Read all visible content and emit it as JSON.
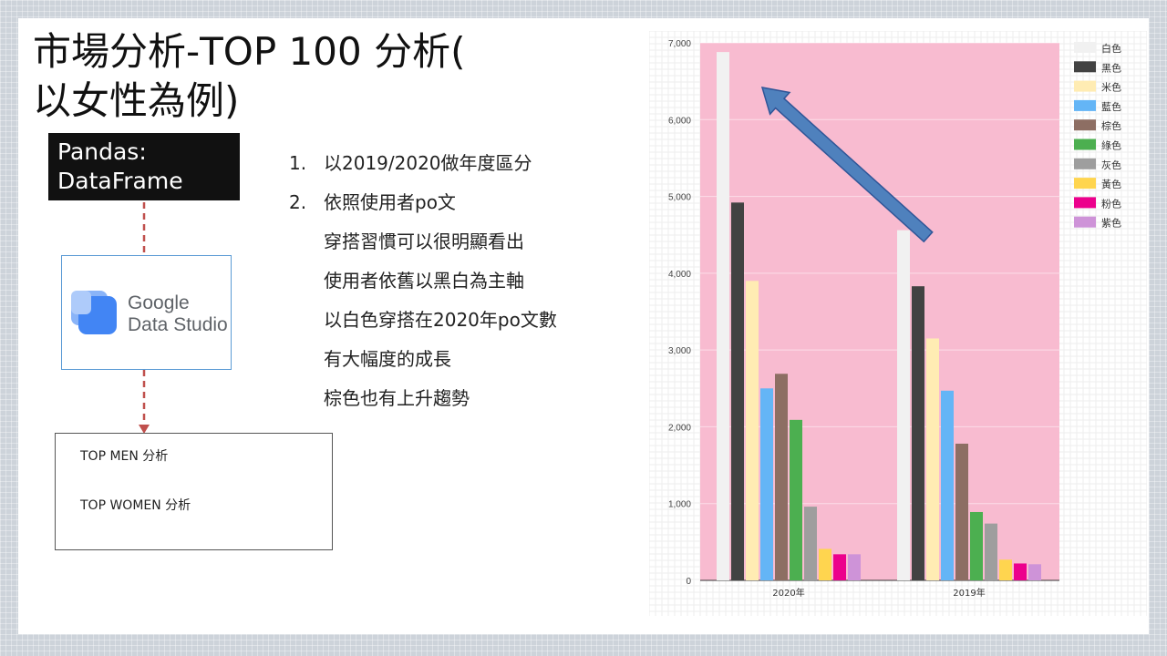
{
  "slide": {
    "title_line1": "市場分析-TOP 100 分析(",
    "title_line2": "以女性為例)",
    "pandas_label_line1": "Pandas:",
    "pandas_label_line2": "DataFrame",
    "gds_label_line1": "Google",
    "gds_label_line2": "Data Studio",
    "top_men": "TOP MEN 分析",
    "top_women": "TOP WOMEN 分析",
    "bullets": [
      {
        "num": "1.",
        "text": "以2019/2020做年度區分"
      },
      {
        "num": "2.",
        "text": "依照使用者po文"
      },
      {
        "num": "",
        "text": "穿搭習慣可以很明顯看出"
      },
      {
        "num": "",
        "text": "使用者依舊以黑白為主軸"
      },
      {
        "num": "",
        "text": "以白色穿搭在2020年po文數"
      },
      {
        "num": "",
        "text": "有大幅度的成長"
      },
      {
        "num": "",
        "text": "棕色也有上升趨勢"
      }
    ]
  },
  "colors": {
    "plot_bg": "#f8bbd0",
    "arrow": "#4f81bd",
    "connector": "#c0504d"
  },
  "chart_data": {
    "type": "bar",
    "categories": [
      "2020年",
      "2019年"
    ],
    "ylim": [
      0,
      7000
    ],
    "yticks": [
      0,
      1000,
      2000,
      3000,
      4000,
      5000,
      6000,
      7000
    ],
    "ytick_labels": [
      "0",
      "1,000",
      "2,000",
      "3,000",
      "4,000",
      "5,000",
      "6,000",
      "7,000"
    ],
    "legend_position": "right",
    "grid": true,
    "series": [
      {
        "name": "白色",
        "color": "#f1f1f1",
        "values": [
          6880,
          4560
        ]
      },
      {
        "name": "黑色",
        "color": "#424242",
        "values": [
          4920,
          3830
        ]
      },
      {
        "name": "米色",
        "color": "#ffecb3",
        "values": [
          3900,
          3150
        ]
      },
      {
        "name": "藍色",
        "color": "#64b5f6",
        "values": [
          2500,
          2470
        ]
      },
      {
        "name": "棕色",
        "color": "#8d6e63",
        "values": [
          2690,
          1780
        ]
      },
      {
        "name": "綠色",
        "color": "#4caf50",
        "values": [
          2090,
          890
        ]
      },
      {
        "name": "灰色",
        "color": "#9e9e9e",
        "values": [
          960,
          740
        ]
      },
      {
        "name": "黃色",
        "color": "#ffd54f",
        "values": [
          410,
          270
        ]
      },
      {
        "name": "粉色",
        "color": "#ec008c",
        "values": [
          340,
          220
        ]
      },
      {
        "name": "紫色",
        "color": "#ce93d8",
        "values": [
          340,
          210
        ]
      }
    ]
  }
}
